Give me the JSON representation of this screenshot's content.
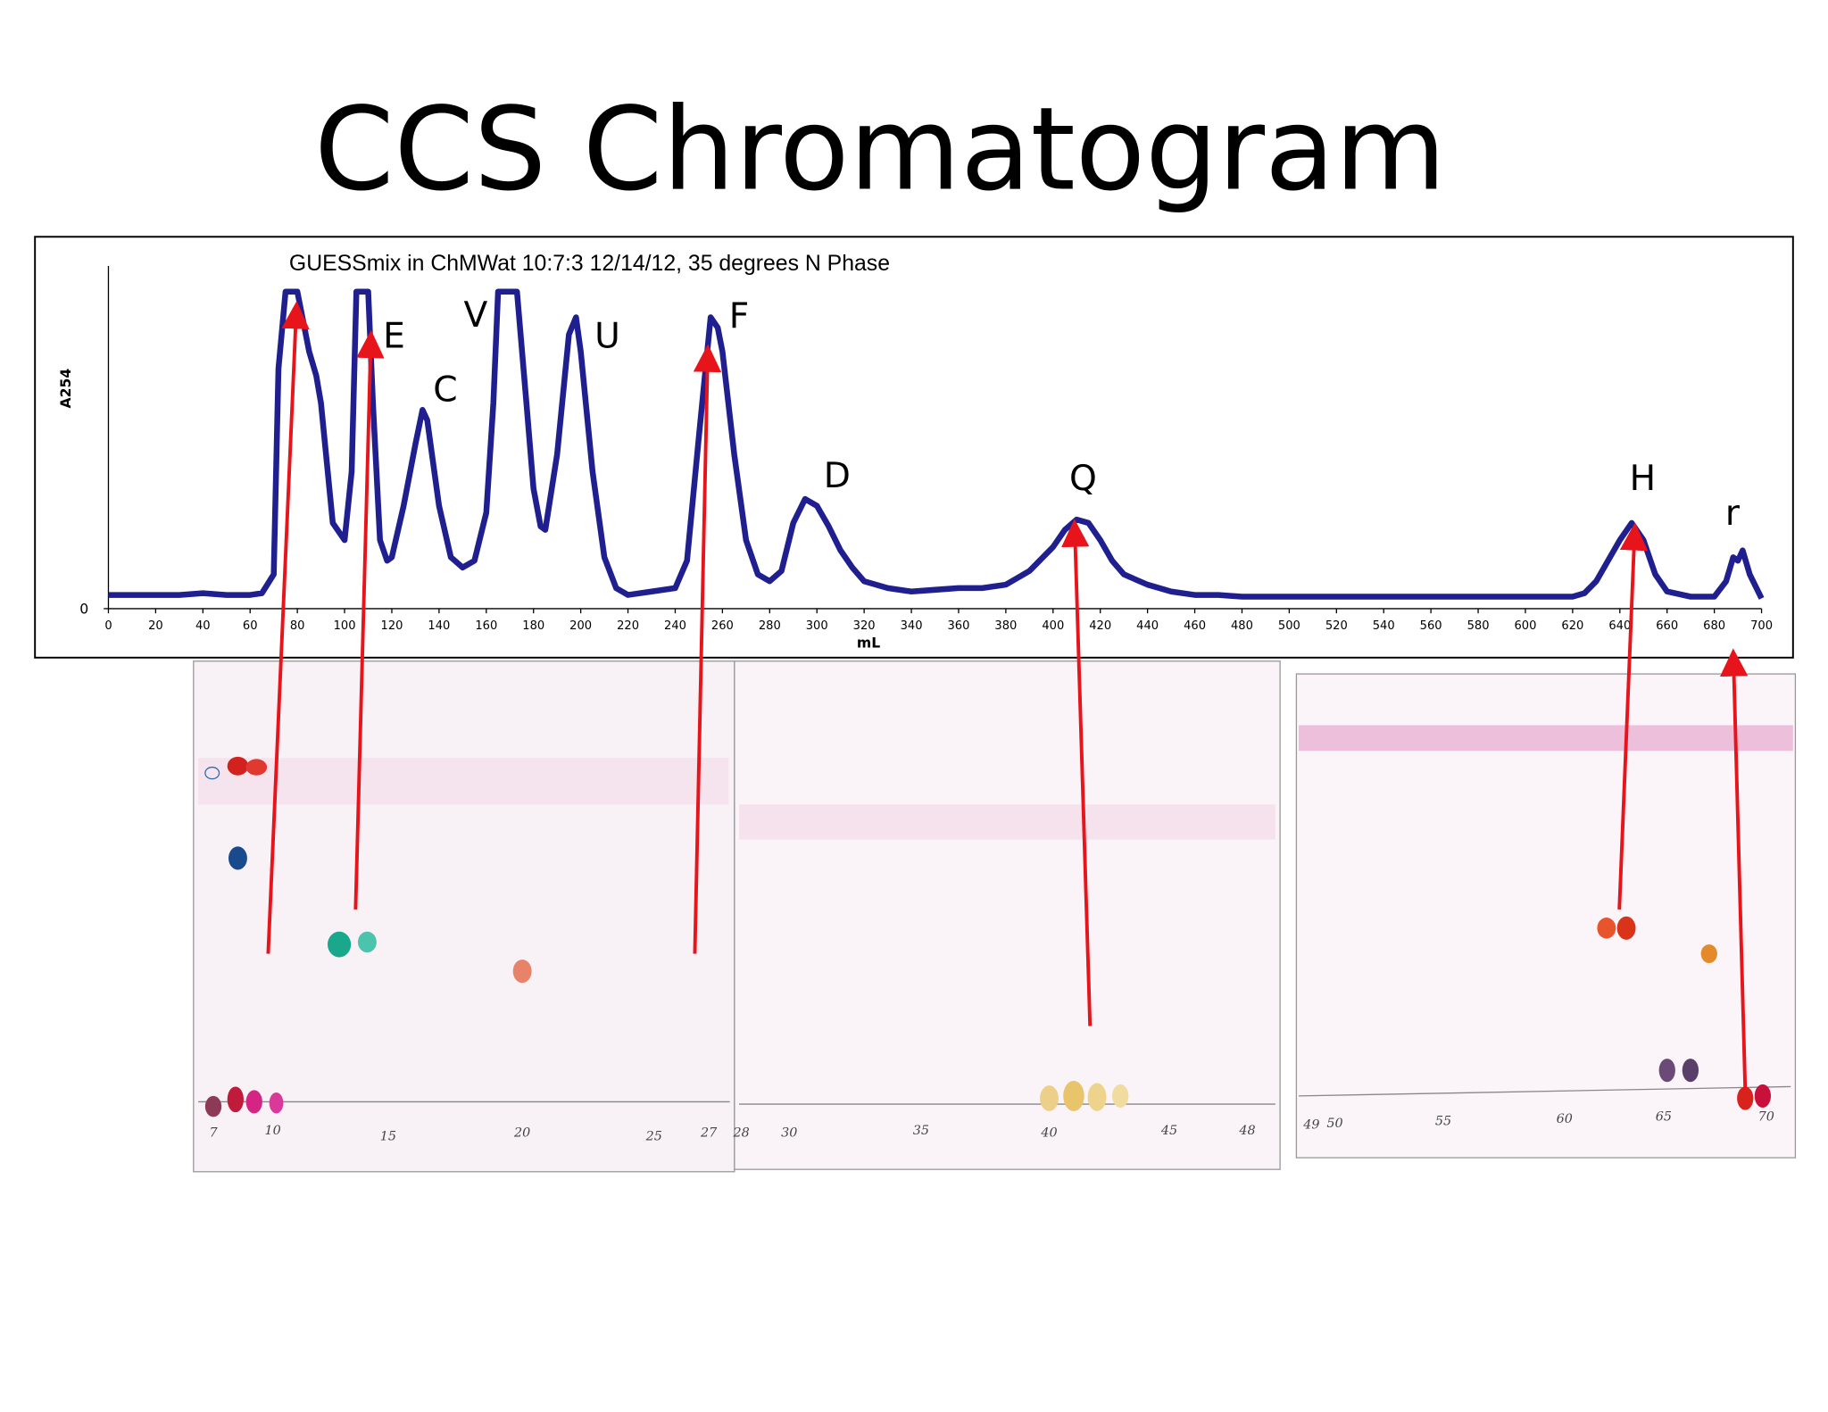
{
  "slide": {
    "title": "CCS Chromatogram"
  },
  "chart_data": {
    "type": "line",
    "title": "GUESSmix in  ChMWat 10:7:3  12/14/12, 35 degrees N Phase",
    "x_label": "mL",
    "y_label": "A254",
    "x": [
      0,
      10,
      20,
      30,
      40,
      50,
      60,
      65,
      70,
      72,
      75,
      80,
      85,
      88,
      90,
      95,
      100,
      103,
      105,
      110,
      112,
      115,
      118,
      120,
      125,
      130,
      133,
      135,
      140,
      145,
      150,
      155,
      160,
      163,
      165,
      170,
      173,
      177,
      180,
      183,
      185,
      190,
      195,
      198,
      200,
      205,
      210,
      215,
      220,
      230,
      240,
      245,
      250,
      255,
      258,
      260,
      265,
      270,
      275,
      280,
      285,
      290,
      295,
      300,
      305,
      310,
      315,
      320,
      330,
      340,
      350,
      360,
      370,
      380,
      390,
      400,
      405,
      410,
      415,
      420,
      425,
      430,
      440,
      450,
      460,
      470,
      480,
      500,
      520,
      540,
      560,
      580,
      600,
      620,
      625,
      630,
      635,
      640,
      645,
      650,
      655,
      660,
      670,
      680,
      685,
      688,
      690,
      692,
      695,
      700
    ],
    "series": [
      {
        "name": "A254",
        "color": "#1f1f8f",
        "values": [
          4,
          4,
          4,
          4,
          4.5,
          4,
          4,
          4.5,
          10,
          70,
          92.5,
          92.5,
          75,
          68,
          60,
          25,
          20,
          40,
          92.5,
          92.5,
          60,
          20,
          14,
          15,
          30,
          48,
          58,
          55,
          30,
          15,
          12,
          14,
          28,
          60,
          92.5,
          92.5,
          92.5,
          60,
          35,
          24,
          23,
          45,
          80,
          85,
          75,
          40,
          15,
          6,
          4,
          5,
          6,
          14,
          50,
          85,
          82,
          75,
          45,
          20,
          10,
          8,
          11,
          25,
          32,
          30,
          24,
          17,
          12,
          8,
          6,
          5,
          5.5,
          6,
          6,
          7,
          11,
          18,
          23,
          26,
          25,
          20,
          14,
          10,
          7,
          5,
          4,
          4,
          3.5,
          3.5,
          3.5,
          3.5,
          3.5,
          3.5,
          3.5,
          3.5,
          4.5,
          8,
          14,
          20,
          25,
          20,
          10,
          5,
          3.5,
          3.5,
          8,
          15,
          14,
          17,
          10,
          3
        ]
      }
    ],
    "xlim": [
      0,
      700
    ],
    "ylim": [
      0,
      100
    ],
    "xticks": [
      0,
      20,
      40,
      60,
      80,
      100,
      120,
      140,
      160,
      180,
      200,
      220,
      240,
      260,
      280,
      300,
      320,
      340,
      360,
      380,
      400,
      420,
      440,
      460,
      480,
      500,
      520,
      540,
      560,
      580,
      600,
      620,
      640,
      660,
      680,
      700
    ],
    "yticks": [
      0
    ],
    "annotations": [
      "E",
      "C",
      "V",
      "U",
      "F",
      "D",
      "Q",
      "H",
      "r"
    ]
  },
  "plates": [
    {
      "labels": [
        "7",
        "10",
        "15",
        "20",
        "25",
        "27"
      ]
    },
    {
      "labels": [
        "28",
        "30",
        "35",
        "40",
        "45",
        "48"
      ]
    },
    {
      "labels": [
        "49",
        "50",
        "55",
        "60",
        "65",
        "70"
      ]
    }
  ]
}
